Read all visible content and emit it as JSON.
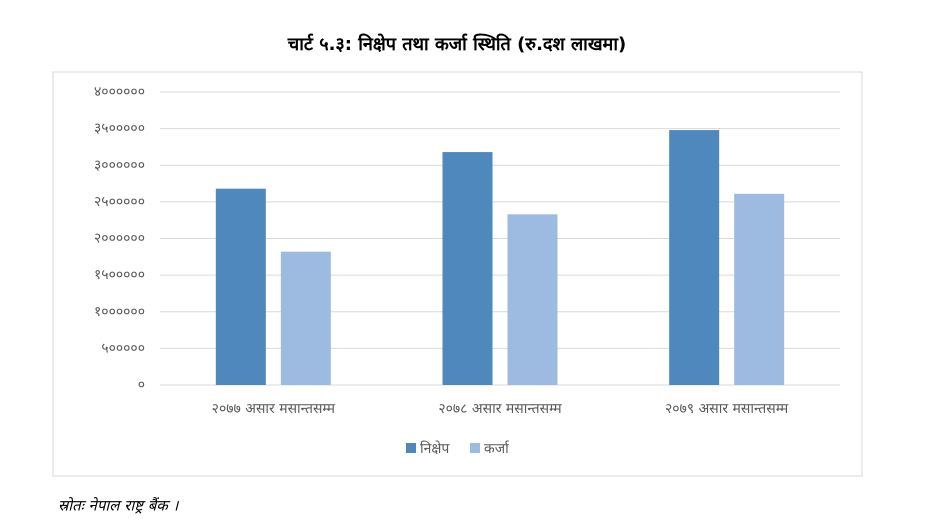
{
  "chart_data": {
    "type": "bar",
    "title": "चार्ट ५.३: निक्षेप तथा कर्जा स्थिति (रु.दश लाखमा)",
    "categories": [
      "२०७७ असार मसान्तसम्म",
      "२०७८ असार मसान्तसम्म",
      "२०७९ असार मसान्तसम्म"
    ],
    "series": [
      {
        "name": "निक्षेप",
        "color": "#4f88bd",
        "values": [
          2680000,
          3180000,
          3480000
        ]
      },
      {
        "name": "कर्जा",
        "color": "#9dbbe0",
        "values": [
          1820000,
          2330000,
          2610000
        ]
      }
    ],
    "ylim": [
      0,
      4000000
    ],
    "yticks": [
      {
        "value": 0,
        "label": "०"
      },
      {
        "value": 500000,
        "label": "५०००००"
      },
      {
        "value": 1000000,
        "label": "१००००००"
      },
      {
        "value": 1500000,
        "label": "१५०००००"
      },
      {
        "value": 2000000,
        "label": "२००००००"
      },
      {
        "value": 2500000,
        "label": "२५०००००"
      },
      {
        "value": 3000000,
        "label": "३००००००"
      },
      {
        "value": 3500000,
        "label": "३५०००००"
      },
      {
        "value": 4000000,
        "label": "४००००००"
      }
    ],
    "grid": true,
    "legend": "bottom"
  },
  "source": "स्रोतः नेपाल राष्ट्र बैंक ।"
}
